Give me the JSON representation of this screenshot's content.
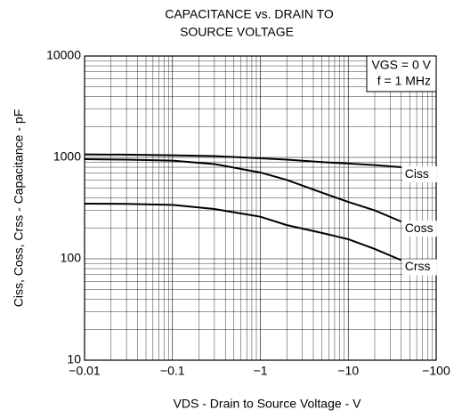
{
  "chart_data": {
    "type": "line",
    "title": [
      "CAPACITANCE vs. DRAIN TO",
      "SOURCE VOLTAGE"
    ],
    "x_label": "VDS - Drain to Source Voltage - V",
    "y_label": "Ciss, Coss, Crss - Capacitance - pF",
    "annotations": [
      "VGS = 0 V",
      "f = 1 MHz"
    ],
    "x": [
      -0.01,
      -0.03,
      -0.1,
      -0.3,
      -1,
      -2,
      -5,
      -10,
      -20,
      -40
    ],
    "series": [
      {
        "name": "Ciss",
        "color": "#000000",
        "values": [
          1070,
          1065,
          1050,
          1030,
          980,
          950,
          900,
          870,
          840,
          800
        ]
      },
      {
        "name": "Coss",
        "color": "#000000",
        "values": [
          960,
          950,
          930,
          860,
          710,
          600,
          450,
          364,
          300,
          233
        ]
      },
      {
        "name": "Crss",
        "color": "#000000",
        "values": [
          350,
          348,
          340,
          310,
          260,
          215,
          180,
          156,
          125,
          97
        ]
      }
    ],
    "xlim": [
      -0.01,
      -100
    ],
    "xticks": [
      {
        "value": -0.01,
        "label": "−0.01"
      },
      {
        "value": -0.1,
        "label": "−0.1"
      },
      {
        "value": -1,
        "label": "−1"
      },
      {
        "value": -10,
        "label": "−10"
      },
      {
        "value": -100,
        "label": "−100"
      }
    ],
    "ylim": [
      10,
      10000
    ],
    "yticks": [
      10,
      100,
      1000,
      10000
    ],
    "log_x": true,
    "log_y": true,
    "grid": true
  }
}
